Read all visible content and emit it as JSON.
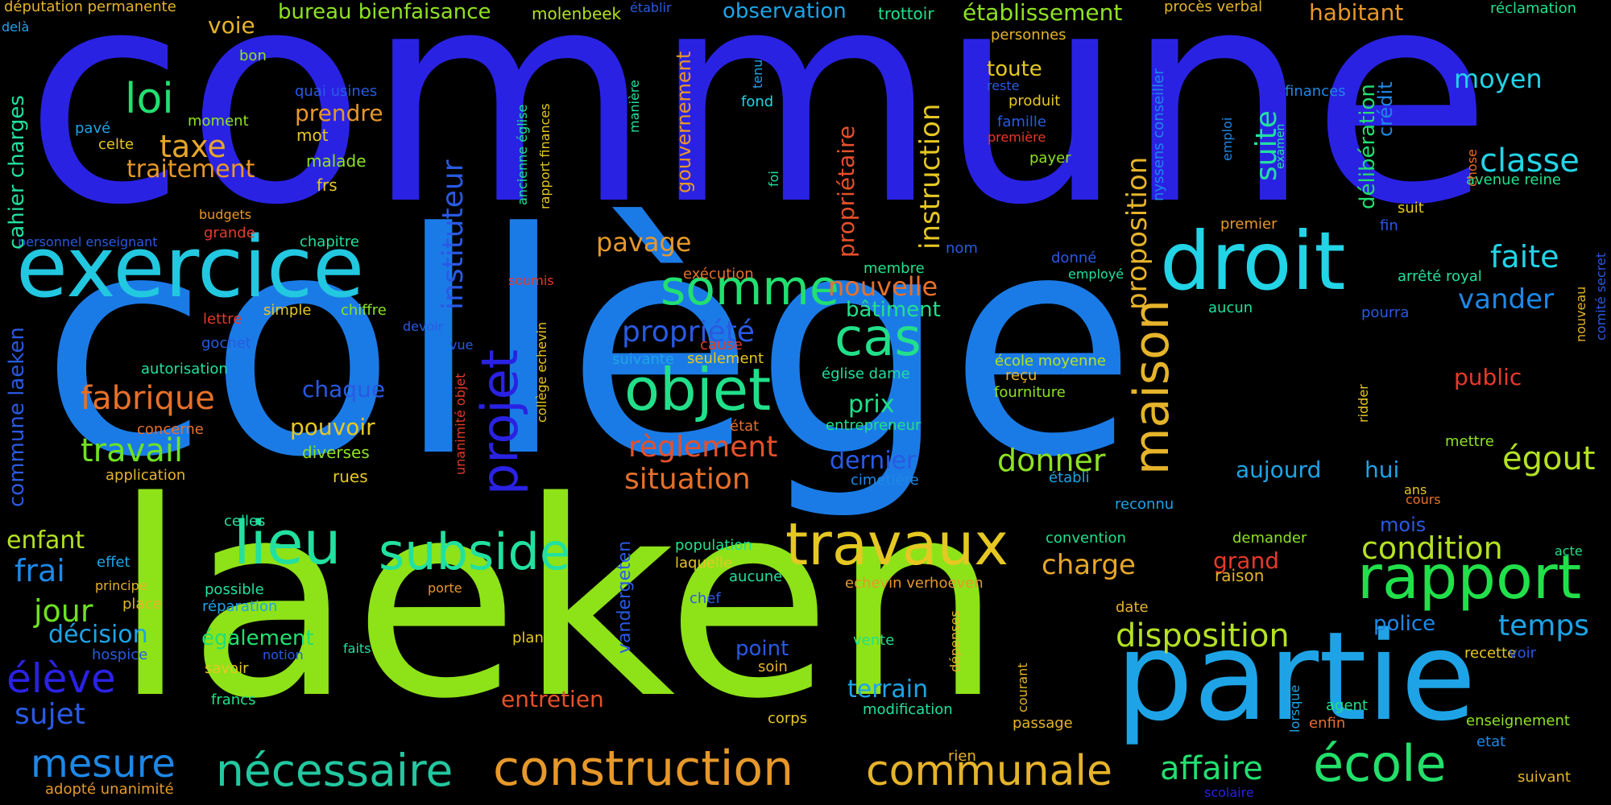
{
  "words": [
    {
      "text": "commune",
      "color": "#2a22e3"
    },
    {
      "text": "collège",
      "color": "#1b7be6"
    },
    {
      "text": "laeken",
      "color": "#8ee218"
    },
    {
      "text": "partie",
      "color": "#1ea4e6"
    },
    {
      "text": "exercice",
      "color": "#22c8e0"
    },
    {
      "text": "droit",
      "color": "#22d4e6"
    },
    {
      "text": "lieu",
      "color": "#22e0a0"
    },
    {
      "text": "subside",
      "color": "#22e0a0"
    },
    {
      "text": "travaux",
      "color": "#e6c822"
    },
    {
      "text": "rapport",
      "color": "#22e04a"
    },
    {
      "text": "objet",
      "color": "#22e08a"
    },
    {
      "text": "cas",
      "color": "#22e08a"
    },
    {
      "text": "somme",
      "color": "#22e070"
    },
    {
      "text": "construction",
      "color": "#e6982a"
    },
    {
      "text": "nécessaire",
      "color": "#22c8a0"
    },
    {
      "text": "communale",
      "color": "#e6b42a"
    },
    {
      "text": "école",
      "color": "#22e06a"
    },
    {
      "text": "affaire",
      "color": "#22e070"
    },
    {
      "text": "loi",
      "color": "#22e070"
    },
    {
      "text": "taxe",
      "color": "#e6a62a"
    },
    {
      "text": "traitement",
      "color": "#e6982a"
    },
    {
      "text": "fabrique",
      "color": "#e6702a"
    },
    {
      "text": "travail",
      "color": "#6ee222"
    },
    {
      "text": "jour",
      "color": "#6ee222"
    },
    {
      "text": "frai",
      "color": "#1e88e6"
    },
    {
      "text": "décision",
      "color": "#1ea4e6"
    },
    {
      "text": "élève",
      "color": "#2a22e3"
    },
    {
      "text": "sujet",
      "color": "#2a5ae3"
    },
    {
      "text": "mesure",
      "color": "#1e88e6"
    },
    {
      "text": "enfant",
      "color": "#b4e222"
    },
    {
      "text": "règlement",
      "color": "#e6502a"
    },
    {
      "text": "situation",
      "color": "#e6702a"
    },
    {
      "text": "propriété",
      "color": "#2a5ae3"
    },
    {
      "text": "pavage",
      "color": "#e6982a"
    },
    {
      "text": "nouvelle",
      "color": "#e6702a"
    },
    {
      "text": "bâtiment",
      "color": "#22e08a"
    },
    {
      "text": "prix",
      "color": "#22e08a"
    },
    {
      "text": "dernier",
      "color": "#2a5ae3"
    },
    {
      "text": "donner",
      "color": "#8ee222"
    },
    {
      "text": "charge",
      "color": "#e6a62a"
    },
    {
      "text": "disposition",
      "color": "#b4e222"
    },
    {
      "text": "terrain",
      "color": "#1ea4e6"
    },
    {
      "text": "entretien",
      "color": "#e6502a"
    },
    {
      "text": "point",
      "color": "#2a5ae3"
    },
    {
      "text": "condition",
      "color": "#b4e222"
    },
    {
      "text": "temps",
      "color": "#1ea4e6"
    },
    {
      "text": "police",
      "color": "#1e88e6"
    },
    {
      "text": "mois",
      "color": "#2a5ae3"
    },
    {
      "text": "grand",
      "color": "#e63a2a"
    },
    {
      "text": "raison",
      "color": "#e6b42a"
    },
    {
      "text": "aujourd",
      "color": "#1ea4e6"
    },
    {
      "text": "hui",
      "color": "#1ea4e6"
    },
    {
      "text": "égout",
      "color": "#b4e222"
    },
    {
      "text": "public",
      "color": "#e63a2a"
    },
    {
      "text": "faite",
      "color": "#22d4e6"
    },
    {
      "text": "vander",
      "color": "#1e88e6"
    },
    {
      "text": "classe",
      "color": "#22d4e6"
    },
    {
      "text": "moyen",
      "color": "#22d4e6"
    },
    {
      "text": "arrêté royal",
      "color": "#22e0a0"
    },
    {
      "text": "chaque",
      "color": "#2a5ae3"
    },
    {
      "text": "pouvoir",
      "color": "#e6c822"
    },
    {
      "text": "diverses",
      "color": "#8ee222"
    },
    {
      "text": "rues",
      "color": "#e6c822"
    },
    {
      "text": "prendre",
      "color": "#e6982a"
    },
    {
      "text": "mot",
      "color": "#e6c822"
    },
    {
      "text": "malade",
      "color": "#8ee222"
    },
    {
      "text": "frs",
      "color": "#e6c822"
    },
    {
      "text": "quai usines",
      "color": "#2a5ae3"
    },
    {
      "text": "voie",
      "color": "#e6b42a"
    },
    {
      "text": "bureau bienfaisance",
      "color": "#8ee222"
    },
    {
      "text": "molenbeek",
      "color": "#b4e222"
    },
    {
      "text": "observation",
      "color": "#1ea4e6"
    },
    {
      "text": "trottoir",
      "color": "#22e08a"
    },
    {
      "text": "établissement",
      "color": "#8ee222"
    },
    {
      "text": "procès verbal",
      "color": "#e6b42a"
    },
    {
      "text": "habitant",
      "color": "#e6982a"
    },
    {
      "text": "réclamation",
      "color": "#22e08a"
    },
    {
      "text": "députation permanente",
      "color": "#e6b42a"
    },
    {
      "text": "delà",
      "color": "#1ea4e6"
    },
    {
      "text": "établir",
      "color": "#2a5ae3"
    },
    {
      "text": "toute",
      "color": "#e6c822"
    },
    {
      "text": "produit",
      "color": "#e6c822"
    },
    {
      "text": "famille",
      "color": "#2a5ae3"
    },
    {
      "text": "première",
      "color": "#e63a2a"
    },
    {
      "text": "payer",
      "color": "#8ee222"
    },
    {
      "text": "reste",
      "color": "#2a5ae3"
    },
    {
      "text": "personnes",
      "color": "#e6b42a"
    },
    {
      "text": "finances",
      "color": "#1e88e6"
    },
    {
      "text": "fond",
      "color": "#22d4e6"
    },
    {
      "text": "premier",
      "color": "#e6982a"
    },
    {
      "text": "avenue reine",
      "color": "#22e08a"
    },
    {
      "text": "suit",
      "color": "#e6c822"
    },
    {
      "text": "fin",
      "color": "#2a5ae3"
    },
    {
      "text": "nom",
      "color": "#2a5ae3"
    },
    {
      "text": "membre",
      "color": "#22e08a"
    },
    {
      "text": "donné",
      "color": "#2a5ae3"
    },
    {
      "text": "employé",
      "color": "#22e0a0"
    },
    {
      "text": "exécution",
      "color": "#e6702a"
    },
    {
      "text": "école moyenne",
      "color": "#b4e222"
    },
    {
      "text": "aucun",
      "color": "#22e0a0"
    },
    {
      "text": "pourra",
      "color": "#2a5ae3"
    },
    {
      "text": "fourniture",
      "color": "#8ee222"
    },
    {
      "text": "reçu",
      "color": "#e6b42a"
    },
    {
      "text": "église dame",
      "color": "#22e0a0"
    },
    {
      "text": "entrepreneur",
      "color": "#22e08a"
    },
    {
      "text": "établi",
      "color": "#1ea4e6"
    },
    {
      "text": "cimetière",
      "color": "#1e88e6"
    },
    {
      "text": "reconnu",
      "color": "#1ea4e6"
    },
    {
      "text": "convention",
      "color": "#22e08a"
    },
    {
      "text": "demander",
      "color": "#8ee222"
    },
    {
      "text": "mettre",
      "color": "#8ee222"
    },
    {
      "text": "ans",
      "color": "#e6c822"
    },
    {
      "text": "cours",
      "color": "#e6702a"
    },
    {
      "text": "acte",
      "color": "#22e08a"
    },
    {
      "text": "date",
      "color": "#e6b42a"
    },
    {
      "text": "agent",
      "color": "#22e08a"
    },
    {
      "text": "enfin",
      "color": "#e6702a"
    },
    {
      "text": "passage",
      "color": "#e6b42a"
    },
    {
      "text": "recette",
      "color": "#e6c822"
    },
    {
      "text": "voir",
      "color": "#2a5ae3"
    },
    {
      "text": "enseignement",
      "color": "#8ee222"
    },
    {
      "text": "etat",
      "color": "#1e88e6"
    },
    {
      "text": "suivant",
      "color": "#e6b42a"
    },
    {
      "text": "scolaire",
      "color": "#2a22e3"
    },
    {
      "text": "rien",
      "color": "#e6b42a"
    },
    {
      "text": "modification",
      "color": "#22e0a0"
    },
    {
      "text": "vente",
      "color": "#22e08a"
    },
    {
      "text": "soin",
      "color": "#e6b42a"
    },
    {
      "text": "corps",
      "color": "#e6c822"
    },
    {
      "text": "plan",
      "color": "#e6c822"
    },
    {
      "text": "chef",
      "color": "#2a5ae3"
    },
    {
      "text": "aucune",
      "color": "#22e0a0"
    },
    {
      "text": "echevin verhoeven",
      "color": "#e6982a"
    },
    {
      "text": "laquelle",
      "color": "#e6c822"
    },
    {
      "text": "population",
      "color": "#22e08a"
    },
    {
      "text": "porte",
      "color": "#e6982a"
    },
    {
      "text": "possible",
      "color": "#22e0a0"
    },
    {
      "text": "réparation",
      "color": "#1ea4e6"
    },
    {
      "text": "également",
      "color": "#22e070"
    },
    {
      "text": "faits",
      "color": "#22e0a0"
    },
    {
      "text": "notion",
      "color": "#2a5ae3"
    },
    {
      "text": "savoir",
      "color": "#e6c822"
    },
    {
      "text": "francs",
      "color": "#22e08a"
    },
    {
      "text": "effet",
      "color": "#1ea4e6"
    },
    {
      "text": "principe",
      "color": "#e6b42a"
    },
    {
      "text": "place",
      "color": "#e6b42a"
    },
    {
      "text": "hospice",
      "color": "#2a5ae3"
    },
    {
      "text": "adopté unanimité",
      "color": "#e6982a"
    },
    {
      "text": "celles",
      "color": "#22e0a0"
    },
    {
      "text": "application",
      "color": "#e6b42a"
    },
    {
      "text": "autorisation",
      "color": "#22e0a0"
    },
    {
      "text": "concerne",
      "color": "#e6702a"
    },
    {
      "text": "gochet",
      "color": "#2a5ae3"
    },
    {
      "text": "lettre",
      "color": "#e63a2a"
    },
    {
      "text": "simple",
      "color": "#e6c822"
    },
    {
      "text": "chiffre",
      "color": "#8ee222"
    },
    {
      "text": "soumis",
      "color": "#e63a2a"
    },
    {
      "text": "devoir",
      "color": "#2a5ae3"
    },
    {
      "text": "vue",
      "color": "#2a5ae3"
    },
    {
      "text": "cause",
      "color": "#e63a2a"
    },
    {
      "text": "seulement",
      "color": "#e6c822"
    },
    {
      "text": "suivante",
      "color": "#1ea4e6"
    },
    {
      "text": "état",
      "color": "#e6702a"
    },
    {
      "text": "personnel enseignant",
      "color": "#2a5ae3"
    },
    {
      "text": "chapitre",
      "color": "#22e0a0"
    },
    {
      "text": "grande",
      "color": "#e63a2a"
    },
    {
      "text": "budgets",
      "color": "#e6982a"
    },
    {
      "text": "celte",
      "color": "#e6c822"
    },
    {
      "text": "pavé",
      "color": "#1ea4e6"
    },
    {
      "text": "moment",
      "color": "#8ee222"
    },
    {
      "text": "bon",
      "color": "#8ee222"
    },
    {
      "text": "cahier charges",
      "color": "#22e0a0"
    },
    {
      "text": "commune laeken",
      "color": "#2a5ae3"
    },
    {
      "text": "projet",
      "color": "#2a22e3"
    },
    {
      "text": "instituteur",
      "color": "#2a5ae3"
    },
    {
      "text": "gouvernement",
      "color": "#e6982a"
    },
    {
      "text": "propriétaire",
      "color": "#e6502a"
    },
    {
      "text": "instruction",
      "color": "#e6c822"
    },
    {
      "text": "maison",
      "color": "#e6b42a"
    },
    {
      "text": "proposition",
      "color": "#e6b42a"
    },
    {
      "text": "suite",
      "color": "#22e0a0"
    },
    {
      "text": "délibération",
      "color": "#22e070"
    },
    {
      "text": "crédit",
      "color": "#1e88e6"
    },
    {
      "text": "nyssens conseiller",
      "color": "#1e88e6"
    },
    {
      "text": "tenu",
      "color": "#1ea4e6"
    },
    {
      "text": "foi",
      "color": "#22e0a0"
    },
    {
      "text": "manière",
      "color": "#22e0a0"
    },
    {
      "text": "ancienne église",
      "color": "#22e0a0"
    },
    {
      "text": "rapport finances",
      "color": "#e6c822"
    },
    {
      "text": "emploi",
      "color": "#1e88e6"
    },
    {
      "text": "examen",
      "color": "#22e0a0"
    },
    {
      "text": "chose",
      "color": "#e6702a"
    },
    {
      "text": "comité secret",
      "color": "#2a5ae3"
    },
    {
      "text": "nouveau",
      "color": "#e6b42a"
    },
    {
      "text": "ridder",
      "color": "#e6c822"
    },
    {
      "text": "lorsque",
      "color": "#1ea4e6"
    },
    {
      "text": "courant",
      "color": "#e6b42a"
    },
    {
      "text": "dépenses",
      "color": "#e6b42a"
    },
    {
      "text": "vandergeten",
      "color": "#2a5ae3"
    },
    {
      "text": "collège echevin",
      "color": "#e6c822"
    },
    {
      "text": "unanimité objet",
      "color": "#e63a2a"
    }
  ]
}
